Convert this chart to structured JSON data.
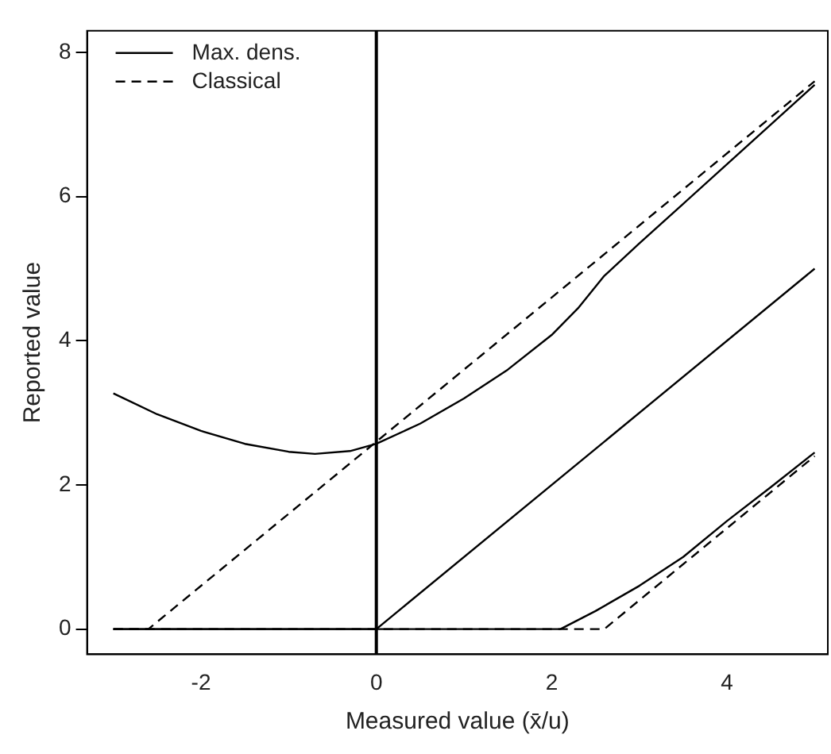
{
  "chart_data": {
    "type": "line",
    "xlabel": "Measured value (x̄/u)",
    "ylabel": "Reported value",
    "xlim": [
      -3.3,
      5.15
    ],
    "ylim": [
      -0.35,
      8.3
    ],
    "xticks": [
      -2,
      0,
      2,
      4
    ],
    "yticks": [
      0,
      2,
      4,
      6,
      8
    ],
    "grid": false,
    "legend": "top left",
    "marker": "none",
    "series": [
      {
        "name": "Max. dens.",
        "color": "#000000",
        "line_style": "solid",
        "x": [
          -3,
          -2.5,
          -2,
          -1.5,
          -1,
          -0.7,
          -0.3,
          0,
          0.5,
          1,
          1.5,
          2,
          2.3,
          2.6,
          3,
          3.5,
          4,
          4.5,
          5
        ],
        "values": [
          3.27,
          2.98,
          2.75,
          2.57,
          2.46,
          2.43,
          2.47,
          2.57,
          2.85,
          3.2,
          3.6,
          4.08,
          4.45,
          4.9,
          5.35,
          5.9,
          6.45,
          7.0,
          7.55
        ]
      },
      {
        "color": "#000000",
        "line_style": "solid",
        "x": [
          -3,
          0,
          5
        ],
        "values": [
          0,
          0,
          5
        ]
      },
      {
        "color": "#000000",
        "line_style": "solid",
        "x": [
          -3,
          2.1,
          2.5,
          3,
          3.5,
          4,
          4.5,
          5
        ],
        "values": [
          0,
          0,
          0.25,
          0.6,
          1.0,
          1.5,
          1.97,
          2.45
        ]
      },
      {
        "name": "Classical",
        "color": "#000000",
        "line_style": "dashed",
        "x": [
          -3,
          -2.6,
          5
        ],
        "values": [
          0,
          0,
          7.6
        ]
      },
      {
        "color": "#000000",
        "line_style": "dashed",
        "x": [
          -3,
          2.6,
          5
        ],
        "values": [
          0,
          0,
          2.4
        ]
      }
    ],
    "ref_lines": [
      {
        "axis": "x",
        "value": 0,
        "color": "#000000",
        "line_style": "solid"
      }
    ]
  }
}
